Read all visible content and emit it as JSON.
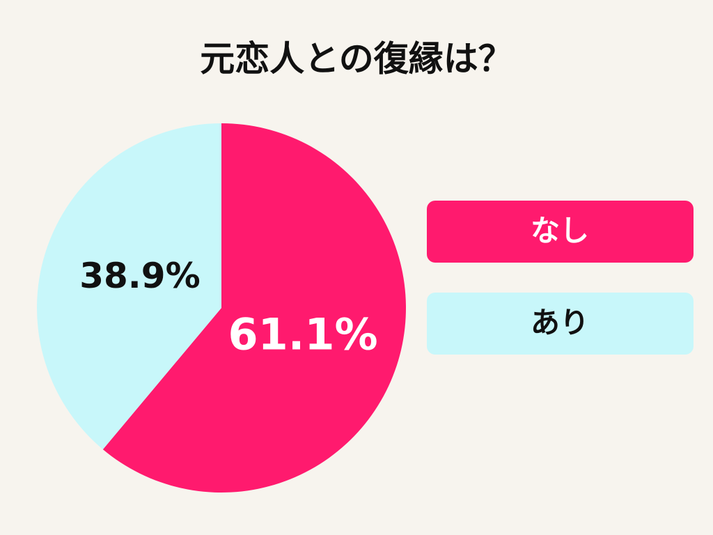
{
  "chart_data": {
    "type": "pie",
    "title": "元恋人との復縁は？",
    "categories": [
      "なし",
      "あり"
    ],
    "values": [
      61.1,
      38.9
    ],
    "value_labels": [
      "61.1%",
      "38.9%"
    ],
    "colors": [
      "#ff1a6e",
      "#c8f7fa"
    ],
    "legend": "right"
  }
}
